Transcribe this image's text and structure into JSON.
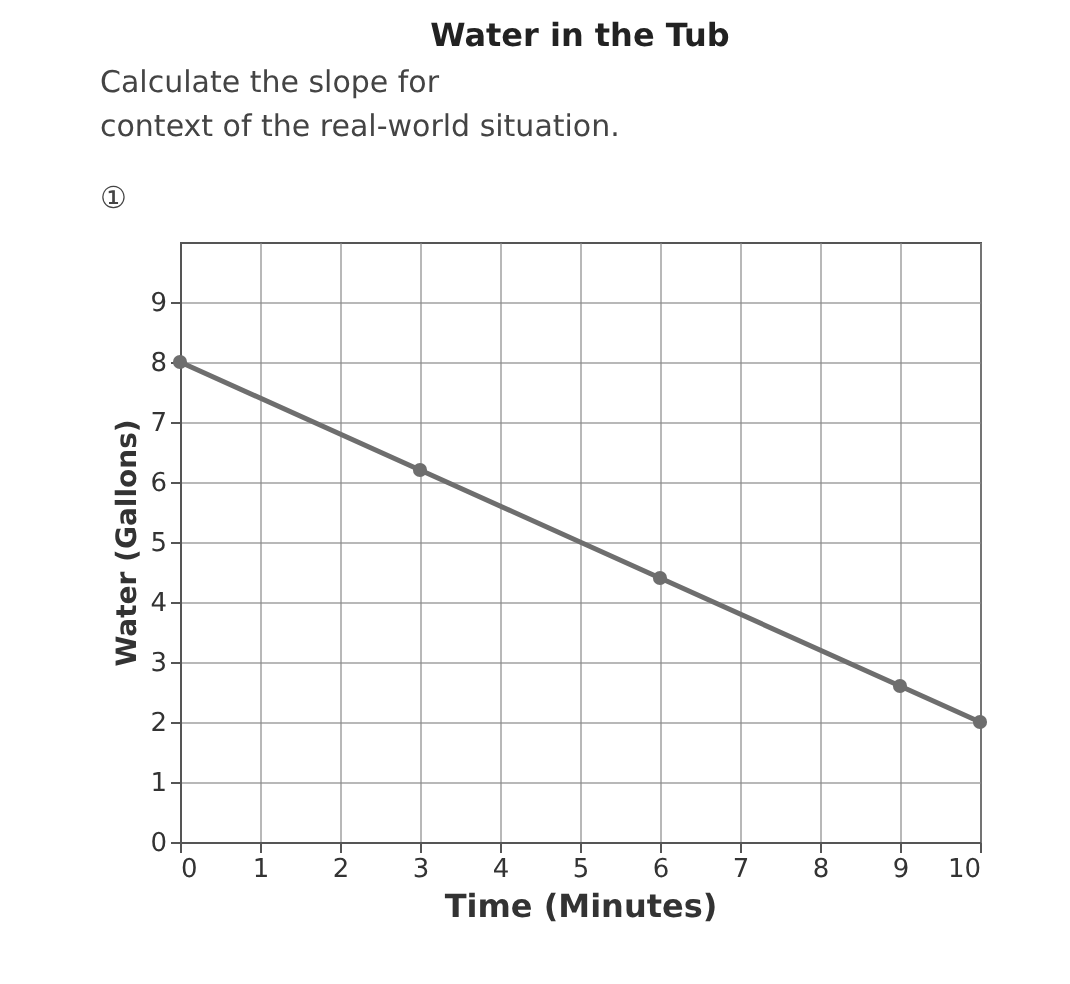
{
  "chart_data": {
    "type": "line",
    "title": "Water in the Tub",
    "xlabel": "Time (Minutes)",
    "ylabel": "Water (Gallons)",
    "annotations": [
      "Calculate the slope for",
      "context of the real-world situation.",
      "①"
    ],
    "x": [
      0,
      3,
      6,
      9,
      10
    ],
    "series": [
      {
        "color": "#6e6e6e",
        "values": [
          8,
          6.2,
          4.4,
          2.6,
          2
        ]
      }
    ],
    "xlim": [
      0,
      10
    ],
    "xticks": [
      0,
      1,
      2,
      3,
      4,
      5,
      6,
      7,
      8,
      9,
      10
    ],
    "ylim": [
      0,
      10
    ],
    "yticks": [
      0,
      1,
      2,
      3,
      4,
      5,
      6,
      7,
      8,
      9
    ],
    "grid": true,
    "marker": "circle",
    "line_style": "solid"
  }
}
